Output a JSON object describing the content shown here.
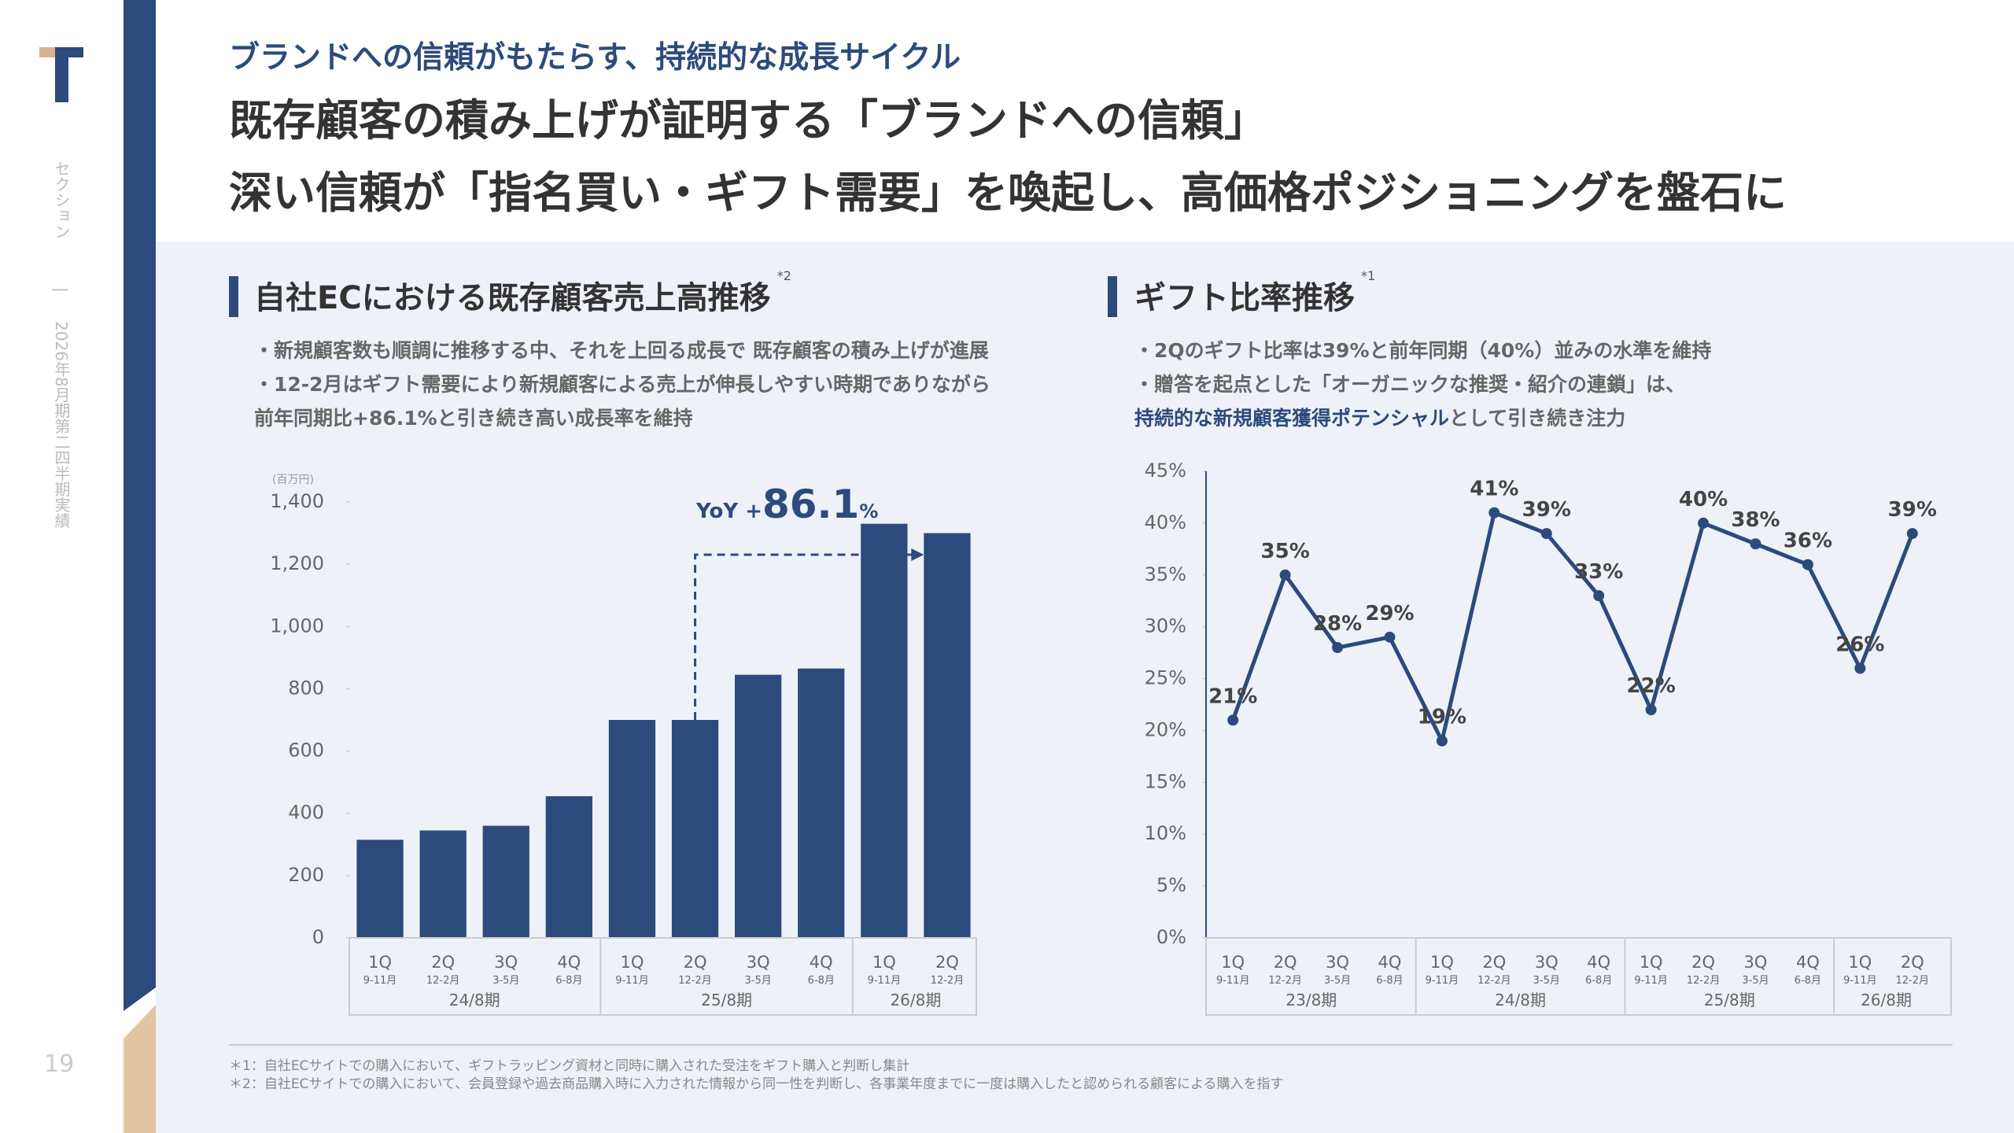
{
  "header": {
    "subtitle": "ブランドへの信頼がもたらす、持続的な成長サイクル",
    "title_lines": [
      "既存顧客の積み上げが証明する「ブランドへの信頼」",
      "深い信頼が「指名買い・ギフト需要」を喚起し、高価格ポジショニングを盤石に"
    ]
  },
  "sidebar": {
    "section": "セクション",
    "separator": "|",
    "period": "2026年8月期第二四半期実績",
    "page": "19"
  },
  "footnotes": [
    "＊1：自社ECサイトでの購入において、ギフトラッピング資材と同時に購入された受注をギフト購入と判断し集計",
    "＊2：自社ECサイトでの購入において、会員登録や過去商品購入時に入力された情報から同一性を判断し、各事業年度までに一度は購入したと認められる顧客による購入を指す"
  ],
  "chart_data": [
    {
      "type": "bar",
      "title": "自社ECにおける既存顧客売上高推移",
      "note_mark": "*2",
      "bullets": [
        "・新規顧客数も順調に推移する中、それを上回る成長で 既存顧客の積み上げが進展",
        "・12-2月はギフト需要により新規顧客による売上が伸長しやすい時期でありながら",
        "前年同期比+86.1%と引き続き高い成長率を維持"
      ],
      "y_unit": "(百万円)",
      "annotation": {
        "prefix": "YoY +",
        "value": "86.1",
        "suffix": "%"
      },
      "categories": [
        {
          "quarter": "1Q",
          "months": "9-11月",
          "period": "24/8期"
        },
        {
          "quarter": "2Q",
          "months": "12-2月",
          "period": "24/8期"
        },
        {
          "quarter": "3Q",
          "months": "3-5月",
          "period": "24/8期"
        },
        {
          "quarter": "4Q",
          "months": "6-8月",
          "period": "24/8期"
        },
        {
          "quarter": "1Q",
          "months": "9-11月",
          "period": "25/8期"
        },
        {
          "quarter": "2Q",
          "months": "12-2月",
          "period": "25/8期"
        },
        {
          "quarter": "3Q",
          "months": "3-5月",
          "period": "25/8期"
        },
        {
          "quarter": "4Q",
          "months": "6-8月",
          "period": "25/8期"
        },
        {
          "quarter": "1Q",
          "months": "9-11月",
          "period": "26/8期"
        },
        {
          "quarter": "2Q",
          "months": "12-2月",
          "period": "26/8期"
        }
      ],
      "values": [
        315,
        345,
        360,
        455,
        700,
        700,
        845,
        865,
        1330,
        1300
      ],
      "color": "#2c4a7c",
      "ylim": [
        0,
        1400
      ],
      "yticks": [
        0,
        200,
        400,
        600,
        800,
        {
          "value": 1000,
          "label": "1,000"
        },
        {
          "value": 1200,
          "label": "1,200"
        },
        {
          "value": 1400,
          "label": "1,400"
        }
      ]
    },
    {
      "type": "line",
      "title": "ギフト比率推移",
      "note_mark": "*1",
      "bullets": [
        "・2Qのギフト比率は39%と前年同期（40%）並みの水準を維持",
        "・贈答を起点とした「オーガニックな推奨・紹介の連鎖」は、"
      ],
      "bullet_emphasis": {
        "highlight": "持続的な新規顧客獲得ポテンシャル",
        "rest": "として引き続き注力"
      },
      "categories": [
        {
          "quarter": "1Q",
          "months": "9-11月",
          "period": "23/8期"
        },
        {
          "quarter": "2Q",
          "months": "12-2月",
          "period": "23/8期"
        },
        {
          "quarter": "3Q",
          "months": "3-5月",
          "period": "23/8期"
        },
        {
          "quarter": "4Q",
          "months": "6-8月",
          "period": "23/8期"
        },
        {
          "quarter": "1Q",
          "months": "9-11月",
          "period": "24/8期"
        },
        {
          "quarter": "2Q",
          "months": "12-2月",
          "period": "24/8期"
        },
        {
          "quarter": "3Q",
          "months": "3-5月",
          "period": "24/8期"
        },
        {
          "quarter": "4Q",
          "months": "6-8月",
          "period": "24/8期"
        },
        {
          "quarter": "1Q",
          "months": "9-11月",
          "period": "25/8期"
        },
        {
          "quarter": "2Q",
          "months": "12-2月",
          "period": "25/8期"
        },
        {
          "quarter": "3Q",
          "months": "3-5月",
          "period": "25/8期"
        },
        {
          "quarter": "4Q",
          "months": "6-8月",
          "period": "25/8期"
        },
        {
          "quarter": "1Q",
          "months": "9-11月",
          "period": "26/8期"
        },
        {
          "quarter": "2Q",
          "months": "12-2月",
          "period": "26/8期"
        }
      ],
      "values": [
        21,
        35,
        28,
        29,
        19,
        41,
        39,
        33,
        22,
        40,
        38,
        36,
        26,
        39
      ],
      "value_labels": [
        "21%",
        "35%",
        "28%",
        "29%",
        "19%",
        "41%",
        "39%",
        "33%",
        "22%",
        "40%",
        "38%",
        "36%",
        "26%",
        "39%"
      ],
      "color": "#2c4a7c",
      "ylim": [
        0,
        45
      ],
      "yticks": [
        {
          "value": 0,
          "label": "0%"
        },
        {
          "value": 5,
          "label": "5%"
        },
        {
          "value": 10,
          "label": "10%"
        },
        {
          "value": 15,
          "label": "15%"
        },
        {
          "value": 20,
          "label": "20%"
        },
        {
          "value": 25,
          "label": "25%"
        },
        {
          "value": 30,
          "label": "30%"
        },
        {
          "value": 35,
          "label": "35%"
        },
        {
          "value": 40,
          "label": "40%"
        },
        {
          "value": 45,
          "label": "45%"
        }
      ]
    }
  ]
}
